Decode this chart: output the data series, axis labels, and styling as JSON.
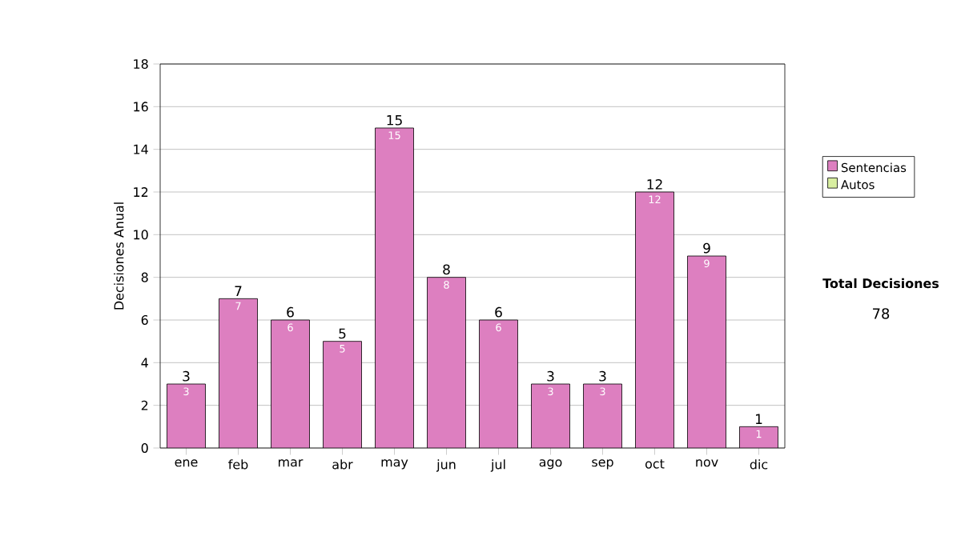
{
  "chart_data": {
    "type": "bar",
    "stacked": true,
    "ylabel": "Decisiones Anual",
    "categories": [
      "ene",
      "feb",
      "mar",
      "abr",
      "may",
      "jun",
      "jul",
      "ago",
      "sep",
      "oct",
      "nov",
      "dic"
    ],
    "series": [
      {
        "name": "Sentencias",
        "color": "#dd7fc0",
        "values": [
          3,
          7,
          6,
          5,
          15,
          8,
          6,
          3,
          3,
          12,
          9,
          1
        ],
        "value_labels": [
          "3",
          "7",
          "6",
          "5",
          "15",
          "8",
          "6",
          "3",
          "3",
          "12",
          "9",
          "1"
        ]
      },
      {
        "name": "Autos",
        "color": "#d8eea0",
        "values": [
          0,
          0,
          0,
          0,
          0,
          0,
          0,
          0,
          0,
          0,
          0,
          0
        ]
      }
    ],
    "totals": [
      "3",
      "7",
      "6",
      "5",
      "15",
      "8",
      "6",
      "3",
      "3",
      "12",
      "9",
      "1"
    ],
    "ylim": [
      0,
      18
    ],
    "yticks": [
      0,
      2,
      4,
      6,
      8,
      10,
      12,
      14,
      16,
      18
    ],
    "grid": "y",
    "legend": "right",
    "annotations": [
      "Total Decisiones",
      "78"
    ]
  }
}
